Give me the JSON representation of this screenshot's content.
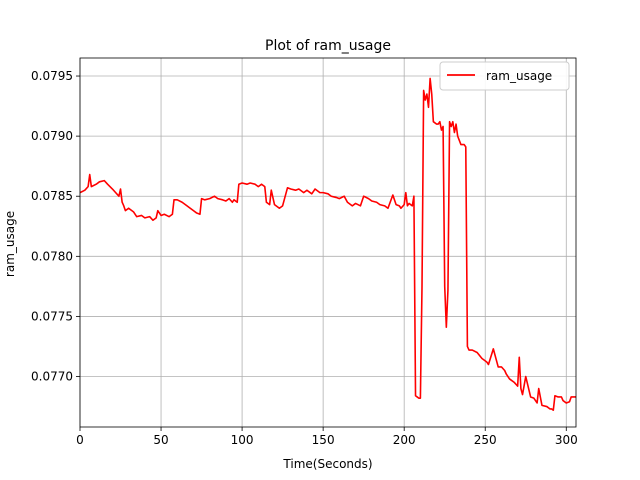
{
  "chart_data": {
    "type": "line",
    "title": "Plot of ram_usage",
    "xlabel": "Time(Seconds)",
    "ylabel": "ram_usage",
    "xlim": [
      0,
      306
    ],
    "ylim": [
      0.07658,
      0.07965
    ],
    "xticks": [
      0,
      50,
      100,
      150,
      200,
      250,
      300
    ],
    "xtick_labels": [
      "0",
      "50",
      "100",
      "150",
      "200",
      "250",
      "300"
    ],
    "yticks": [
      0.077,
      0.0775,
      0.078,
      0.0785,
      0.079,
      0.0795
    ],
    "ytick_labels": [
      "0.0770",
      "0.0775",
      "0.0780",
      "0.0785",
      "0.0790",
      "0.0795"
    ],
    "grid": true,
    "legend_position": "upper right",
    "series": [
      {
        "name": "ram_usage",
        "color": "#ff0000",
        "x": [
          0,
          3,
          5,
          6,
          7,
          10,
          12,
          15,
          17,
          20,
          22,
          24,
          25,
          26,
          27,
          28,
          30,
          33,
          35,
          38,
          40,
          43,
          45,
          47,
          48,
          50,
          52,
          55,
          57,
          58,
          60,
          63,
          65,
          68,
          70,
          72,
          74,
          75,
          77,
          80,
          83,
          85,
          88,
          90,
          92,
          94,
          95,
          97,
          98,
          100,
          103,
          105,
          108,
          110,
          112,
          114,
          115,
          117,
          118,
          120,
          123,
          125,
          128,
          130,
          133,
          135,
          138,
          140,
          143,
          145,
          148,
          150,
          153,
          155,
          158,
          160,
          163,
          165,
          168,
          170,
          173,
          175,
          178,
          180,
          183,
          185,
          188,
          190,
          193,
          195,
          197,
          198,
          200,
          201,
          202,
          203,
          205,
          206,
          207,
          208,
          209,
          210,
          211,
          212,
          213,
          214,
          215,
          216,
          217,
          218,
          220,
          221,
          222,
          223,
          224,
          225,
          226,
          227,
          228,
          229,
          230,
          231,
          232,
          233,
          235,
          236,
          237,
          238,
          239,
          240,
          242,
          245,
          248,
          250,
          251,
          252,
          255,
          258,
          260,
          262,
          263,
          265,
          268,
          270,
          271,
          272,
          273,
          275,
          278,
          280,
          281,
          282,
          283,
          285,
          288,
          290,
          291,
          292,
          293,
          295,
          297,
          298,
          300,
          302,
          303,
          306
        ],
        "y": [
          0.07853,
          0.07855,
          0.07858,
          0.07868,
          0.07858,
          0.0786,
          0.07862,
          0.07863,
          0.0786,
          0.07856,
          0.07853,
          0.0785,
          0.07856,
          0.07845,
          0.07842,
          0.07838,
          0.0784,
          0.07837,
          0.07833,
          0.07834,
          0.07832,
          0.07833,
          0.0783,
          0.07832,
          0.07838,
          0.07834,
          0.07835,
          0.07833,
          0.07835,
          0.07847,
          0.07847,
          0.07845,
          0.07843,
          0.0784,
          0.07838,
          0.07836,
          0.07835,
          0.07848,
          0.07847,
          0.07848,
          0.0785,
          0.07848,
          0.07847,
          0.07846,
          0.07848,
          0.07845,
          0.07847,
          0.07845,
          0.0786,
          0.07861,
          0.0786,
          0.07861,
          0.0786,
          0.07858,
          0.0786,
          0.07858,
          0.07845,
          0.07843,
          0.07855,
          0.07843,
          0.0784,
          0.07842,
          0.07857,
          0.07856,
          0.07855,
          0.07856,
          0.07853,
          0.07855,
          0.07852,
          0.07856,
          0.07853,
          0.07853,
          0.07852,
          0.0785,
          0.07849,
          0.07848,
          0.0785,
          0.07845,
          0.07842,
          0.07844,
          0.07842,
          0.0785,
          0.07848,
          0.07846,
          0.07845,
          0.07843,
          0.07842,
          0.0784,
          0.07851,
          0.07843,
          0.07842,
          0.0784,
          0.07843,
          0.07853,
          0.07842,
          0.07844,
          0.07842,
          0.0785,
          0.07684,
          0.07683,
          0.07682,
          0.07682,
          0.07775,
          0.07938,
          0.0793,
          0.07935,
          0.07924,
          0.07948,
          0.07935,
          0.07912,
          0.0791,
          0.0791,
          0.07912,
          0.07905,
          0.07908,
          0.07775,
          0.07741,
          0.07772,
          0.07912,
          0.07908,
          0.07912,
          0.07903,
          0.0791,
          0.079,
          0.07893,
          0.07893,
          0.07893,
          0.07891,
          0.07725,
          0.07722,
          0.07722,
          0.0772,
          0.07715,
          0.07713,
          0.07712,
          0.0771,
          0.07723,
          0.07708,
          0.07708,
          0.07705,
          0.07702,
          0.07698,
          0.07695,
          0.07692,
          0.07716,
          0.0769,
          0.07685,
          0.077,
          0.07683,
          0.07682,
          0.0768,
          0.07678,
          0.0769,
          0.07676,
          0.07675,
          0.07673,
          0.07673,
          0.07672,
          0.07684,
          0.07683,
          0.07683,
          0.0768,
          0.07678,
          0.07679,
          0.07683,
          0.07683
        ]
      }
    ]
  }
}
